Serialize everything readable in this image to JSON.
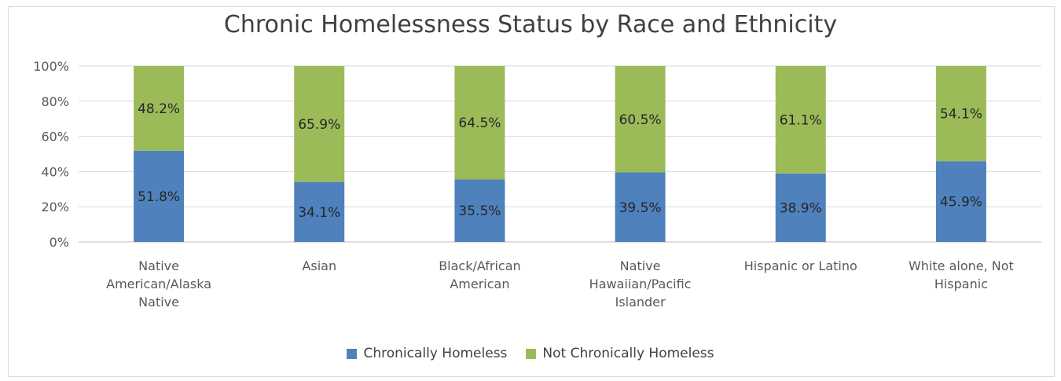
{
  "chart_data": {
    "type": "bar",
    "stacked": true,
    "title": "Chronic Homelessness Status by Race and Ethnicity",
    "categories": [
      [
        "Native",
        "American/Alaska",
        "Native"
      ],
      [
        "Asian"
      ],
      [
        "Black/African",
        "American"
      ],
      [
        "Native",
        "Hawaiian/Pacific",
        "Islander"
      ],
      [
        "Hispanic or Latino"
      ],
      [
        "White alone, Not",
        "Hispanic"
      ]
    ],
    "series": [
      {
        "name": "Chronically Homeless",
        "color": "#4f81bd",
        "values": [
          51.8,
          34.1,
          35.5,
          39.5,
          38.9,
          45.9
        ],
        "labels": [
          "51.8%",
          "34.1%",
          "35.5%",
          "39.5%",
          "38.9%",
          "45.9%"
        ]
      },
      {
        "name": "Not Chronically Homeless",
        "color": "#9bbb59",
        "values": [
          48.2,
          65.9,
          64.5,
          60.5,
          61.1,
          54.1
        ],
        "labels": [
          "48.2%",
          "65.9%",
          "64.5%",
          "60.5%",
          "61.1%",
          "54.1%"
        ]
      }
    ],
    "ylim": [
      0,
      100
    ],
    "yticks": [
      "0%",
      "20%",
      "40%",
      "60%",
      "80%",
      "100%"
    ],
    "grid": true,
    "legend": "bottom"
  }
}
